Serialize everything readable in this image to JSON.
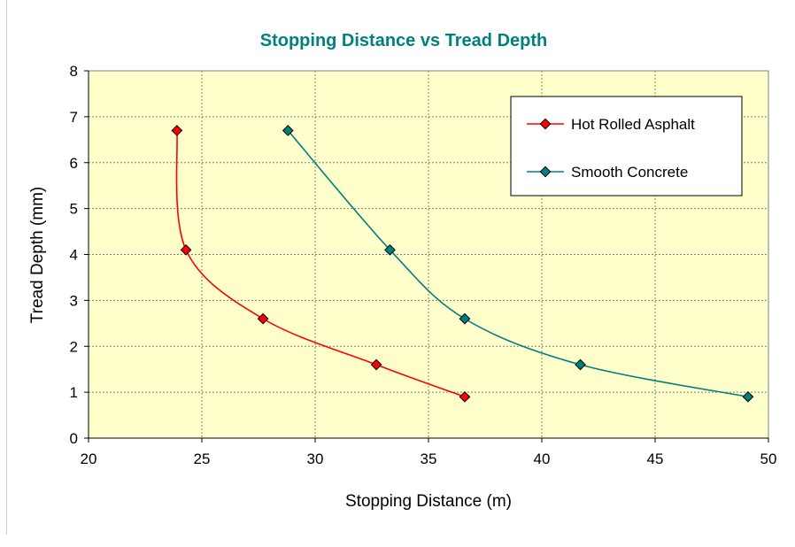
{
  "colors": {
    "title": "#008080",
    "plot_background": "#ffffcc",
    "grid": "#808080",
    "series_asphalt": "#ff0000",
    "series_concrete": "#008080"
  },
  "chart_data": {
    "type": "line",
    "title": "Stopping Distance vs Tread Depth",
    "xlabel": "Stopping Distance (m)",
    "ylabel": "Tread Depth (mm)",
    "xlim": [
      20,
      50
    ],
    "ylim": [
      0,
      8
    ],
    "x_ticks": [
      20,
      25,
      30,
      35,
      40,
      45,
      50
    ],
    "y_ticks": [
      0,
      1,
      2,
      3,
      4,
      5,
      6,
      7,
      8
    ],
    "grid": true,
    "legend_position": "top-right",
    "series": [
      {
        "name": "Hot Rolled Asphalt",
        "color": "#ff0000",
        "points": [
          {
            "x": 23.9,
            "y": 6.7
          },
          {
            "x": 24.3,
            "y": 4.1
          },
          {
            "x": 27.7,
            "y": 2.6
          },
          {
            "x": 32.7,
            "y": 1.6
          },
          {
            "x": 36.6,
            "y": 0.9
          }
        ]
      },
      {
        "name": "Smooth Concrete",
        "color": "#008080",
        "points": [
          {
            "x": 28.8,
            "y": 6.7
          },
          {
            "x": 33.3,
            "y": 4.1
          },
          {
            "x": 36.6,
            "y": 2.6
          },
          {
            "x": 41.7,
            "y": 1.6
          },
          {
            "x": 49.1,
            "y": 0.9
          }
        ]
      }
    ]
  }
}
